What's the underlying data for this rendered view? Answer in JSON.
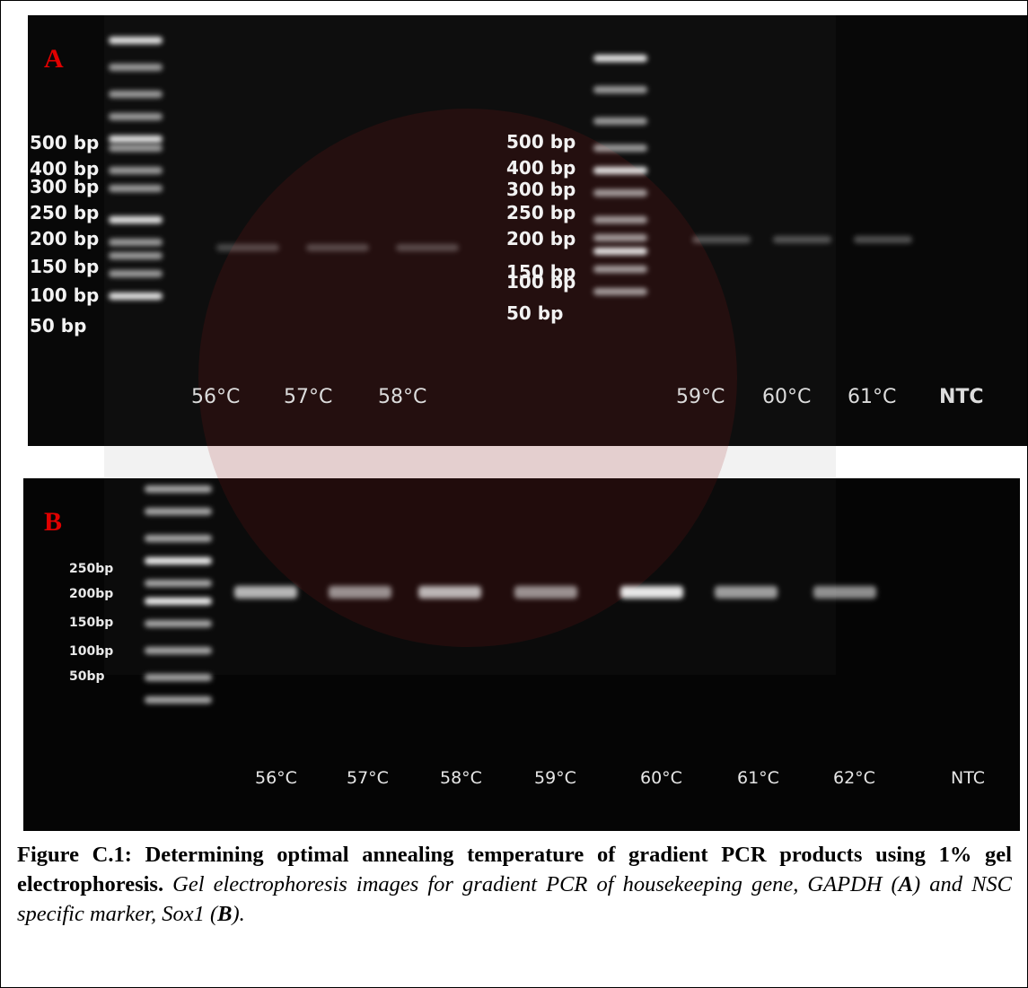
{
  "panel_a": {
    "label": "A",
    "ladder_left": [
      "500 bp",
      "400 bp",
      "300 bp",
      "250 bp",
      "200 bp",
      "150 bp",
      "100 bp",
      "50 bp"
    ],
    "ladder_right": [
      "500 bp",
      "400 bp",
      "300 bp",
      "250 bp",
      "200 bp",
      "150 bp",
      "100 bp",
      "50 bp"
    ],
    "lanes": [
      "56°C",
      "57°C",
      "58°C",
      "59°C",
      "60°C",
      "61°C",
      "NTC"
    ]
  },
  "panel_b": {
    "label": "B",
    "ladder": [
      "250bp",
      "200bp",
      "150bp",
      "100bp",
      "50bp"
    ],
    "lanes": [
      "56°C",
      "57°C",
      "58°C",
      "59°C",
      "60°C",
      "61°C",
      "62°C",
      "NTC"
    ]
  },
  "caption": {
    "title": "Figure C.1: Determining optimal annealing temperature of gradient PCR products using 1% gel electrophoresis.",
    "text_1": "Gel electrophoresis images for gradient PCR of housekeeping gene, GAPDH (",
    "ref_a": "A",
    "text_2": ") and NSC specific marker, Sox1 (",
    "ref_b": "B",
    "text_3": ")."
  }
}
